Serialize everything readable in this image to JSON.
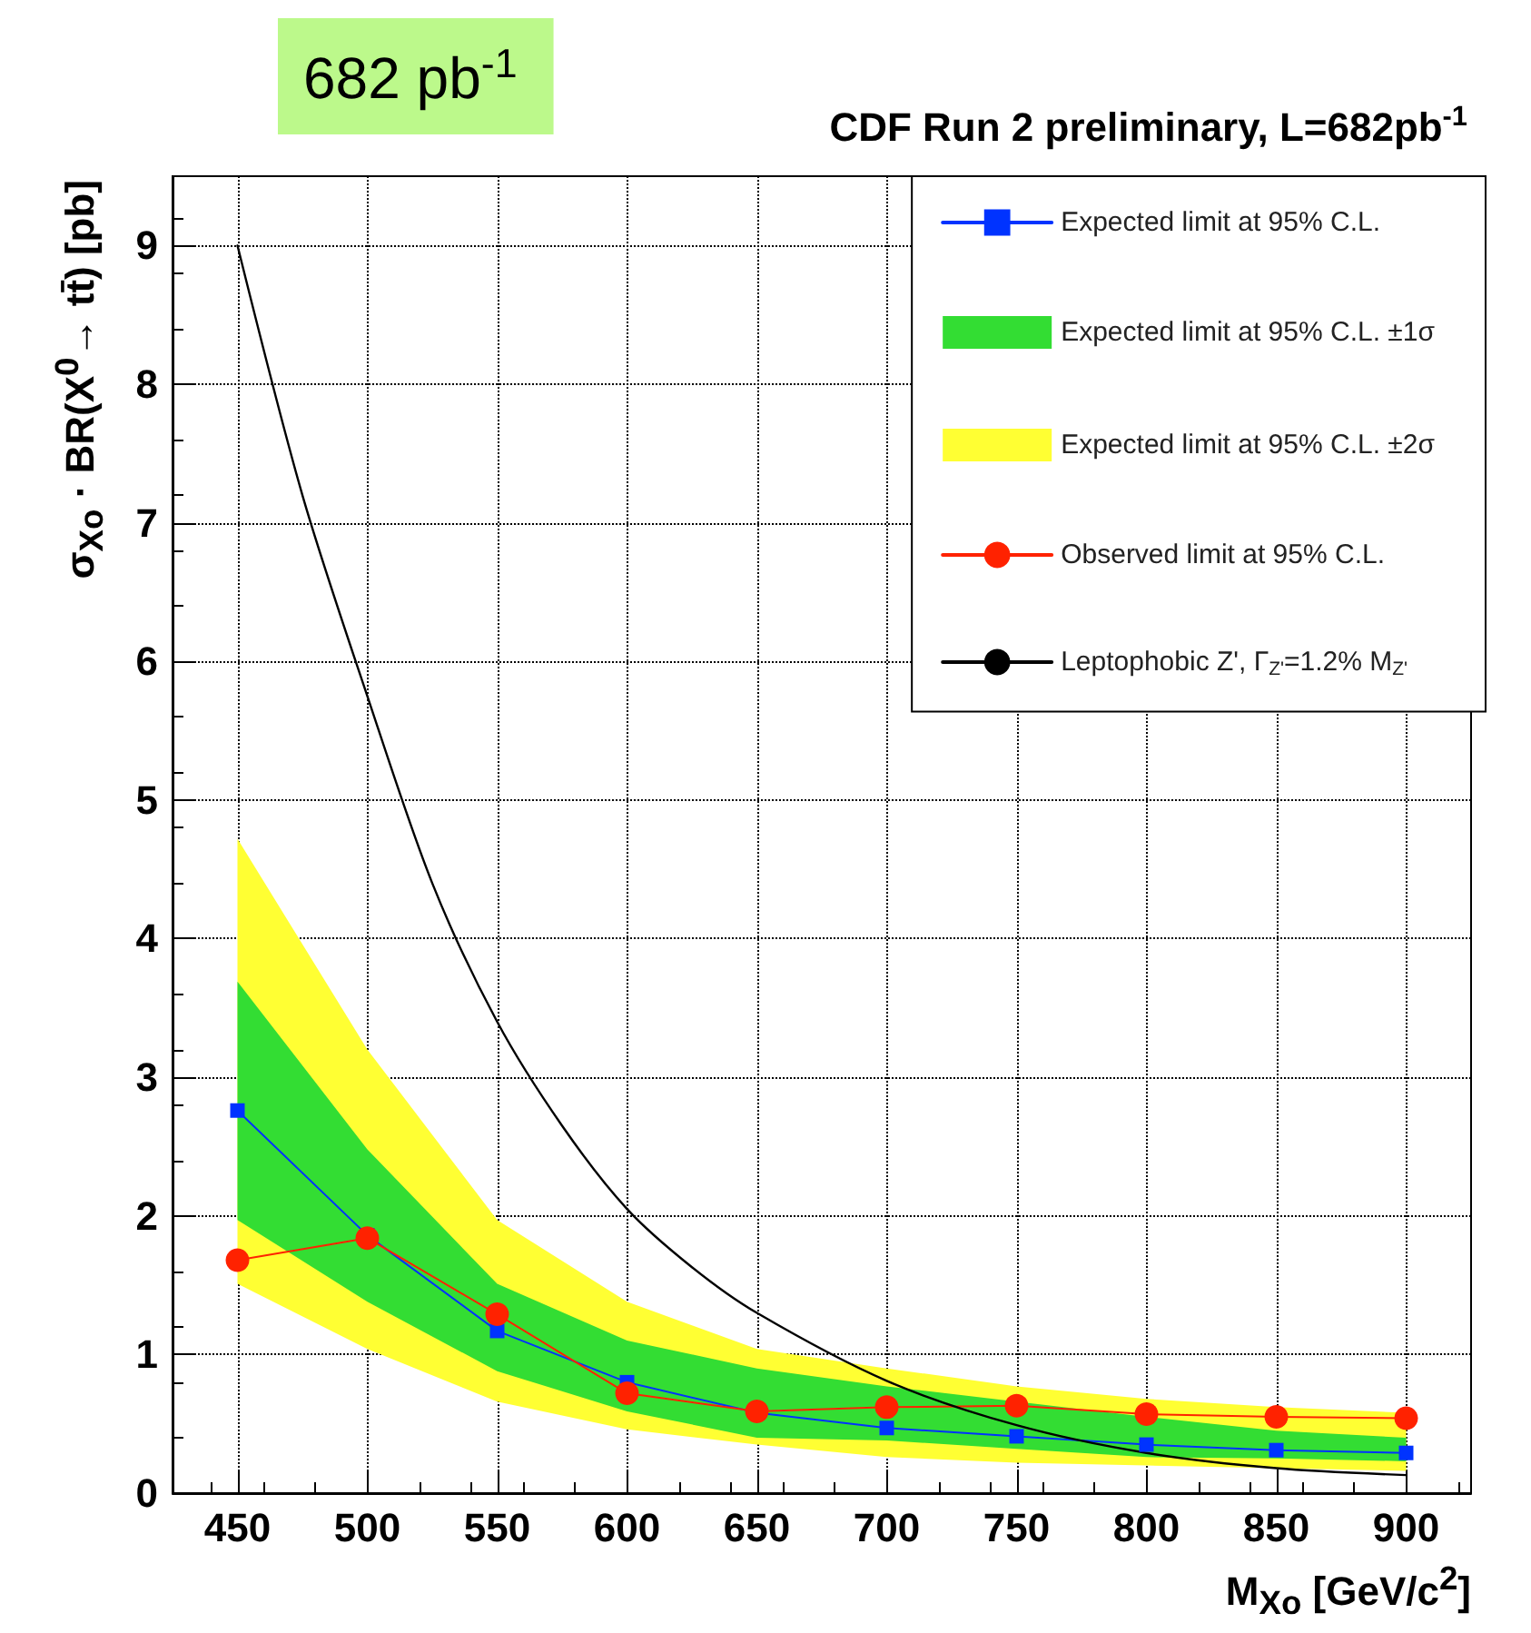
{
  "chart_data": {
    "type": "line",
    "title": "CDF Run 2 preliminary, L=682pb$^{-1}$",
    "xlabel": "M$_{Xo}$ [GeV/c$^{2}$]",
    "ylabel": "σ$_{Xo}$ · BR(X$^{0}$→ tt̄) [pb]",
    "annotations": [
      "682 pb$^{-1}$"
    ],
    "x": [
      450,
      500,
      550,
      600,
      650,
      700,
      750,
      800,
      850,
      900
    ],
    "series": [
      {
        "name": "Expected limit at 95% C.L.",
        "color": "#0033ff",
        "marker": "square",
        "values": [
          2.76,
          1.86,
          1.17,
          0.8,
          0.58,
          0.47,
          0.41,
          0.35,
          0.31,
          0.29
        ]
      },
      {
        "name": "Expected limit at 95% C.L. ±1σ",
        "type": "area",
        "color": "#33dd33",
        "values": [
          null,
          null,
          null,
          null,
          null,
          null,
          null,
          null,
          null,
          null
        ],
        "lower": [
          1.97,
          1.38,
          0.88,
          0.59,
          0.4,
          0.38,
          0.32,
          0.26,
          0.25,
          0.23
        ],
        "upper": [
          3.69,
          2.48,
          1.51,
          1.1,
          0.9,
          0.77,
          0.66,
          0.55,
          0.45,
          0.4
        ]
      },
      {
        "name": "Expected limit at 95% C.L. ±2σ",
        "type": "area",
        "color": "#ffff33",
        "values": [
          null,
          null,
          null,
          null,
          null,
          null,
          null,
          null,
          null,
          null
        ],
        "lower": [
          1.51,
          1.04,
          0.66,
          0.46,
          0.35,
          0.26,
          0.22,
          0.2,
          0.18,
          0.16
        ],
        "upper": [
          4.72,
          3.2,
          1.97,
          1.38,
          1.04,
          0.9,
          0.77,
          0.68,
          0.62,
          0.58
        ]
      },
      {
        "name": "Observed limit at 95% C.L.",
        "color": "#ff2200",
        "marker": "circle",
        "values": [
          1.68,
          1.84,
          1.29,
          0.72,
          0.59,
          0.62,
          0.63,
          0.57,
          0.55,
          0.54
        ]
      },
      {
        "name": "Leptophobic Z', Γ$_{Z'}$=1.2% M$_{Z'}$",
        "color": "#000000",
        "marker": "none",
        "x": [
          450,
          475,
          500,
          525,
          550,
          575,
          600,
          625,
          650,
          700,
          750,
          800,
          850,
          900
        ],
        "values": [
          9.0,
          7.2,
          5.75,
          4.4,
          3.4,
          2.65,
          2.05,
          1.63,
          1.3,
          0.81,
          0.49,
          0.29,
          0.18,
          0.13
        ]
      }
    ],
    "xlim": [
      425,
      925
    ],
    "xticks": [
      450,
      500,
      550,
      600,
      650,
      700,
      750,
      800,
      850,
      900
    ],
    "ylim": [
      0,
      9.5
    ],
    "yticks": [
      0,
      1,
      2,
      3,
      4,
      5,
      6,
      7,
      8,
      9
    ],
    "grid": true,
    "line_style": "solid",
    "legend": "top right"
  }
}
